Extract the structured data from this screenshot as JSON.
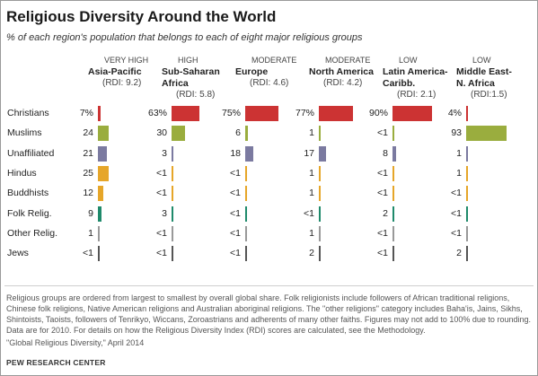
{
  "title": "Religious Diversity Around the World",
  "subtitle": "% of each region's population that belongs to each of eight major religious groups",
  "chart_data": {
    "type": "bar",
    "title": "Religious Diversity Around the World",
    "subtitle": "% of each region's population that belongs to each of eight major religious groups",
    "categories": [
      "Christians",
      "Muslims",
      "Unaffiliated",
      "Hindus",
      "Buddhists",
      "Folk Relig.",
      "Other Relig.",
      "Jews"
    ],
    "category_colors": [
      "#cc3333",
      "#9aad3e",
      "#7b7aa0",
      "#e6a629",
      "#e6a629",
      "#1f8a6b",
      "#999999",
      "#555555"
    ],
    "series": [
      {
        "level": "VERY HIGH",
        "name": "Asia-Pacific",
        "name_lines": [
          "Asia-Pacific"
        ],
        "rdi": "(RDI: 9.2)",
        "values": [
          7,
          24,
          21,
          25,
          12,
          9,
          1,
          0.1
        ],
        "labels": [
          "7%",
          "24",
          "21",
          "25",
          "12",
          "9",
          "1",
          "<1"
        ]
      },
      {
        "level": "HIGH",
        "name": "Sub-Saharan Africa",
        "name_lines": [
          "Sub-Saharan",
          "Africa"
        ],
        "rdi": "(RDI: 5.8)",
        "values": [
          63,
          30,
          3,
          0.1,
          0.1,
          3,
          0.1,
          0.1
        ],
        "labels": [
          "63%",
          "30",
          "3",
          "<1",
          "<1",
          "3",
          "<1",
          "<1"
        ]
      },
      {
        "level": "MODERATE",
        "name": "Europe",
        "name_lines": [
          "Europe"
        ],
        "rdi": "(RDI: 4.6)",
        "values": [
          75,
          6,
          18,
          0.1,
          0.1,
          0.1,
          0.1,
          0.1
        ],
        "labels": [
          "75%",
          "6",
          "18",
          "<1",
          "<1",
          "<1",
          "<1",
          "<1"
        ]
      },
      {
        "level": "MODERATE",
        "name": "North America",
        "name_lines": [
          "North America"
        ],
        "rdi": "(RDI: 4.2)",
        "values": [
          77,
          1,
          17,
          1,
          1,
          0.1,
          1,
          2
        ],
        "labels": [
          "77%",
          "1",
          "17",
          "1",
          "1",
          "<1",
          "1",
          "2"
        ]
      },
      {
        "level": "LOW",
        "name": "Latin America-Caribb.",
        "name_lines": [
          "Latin America-",
          "Caribb."
        ],
        "rdi": "(RDI: 2.1)",
        "values": [
          90,
          0.1,
          8,
          0.1,
          0.1,
          2,
          0.1,
          0.1
        ],
        "labels": [
          "90%",
          "<1",
          "8",
          "<1",
          "<1",
          "2",
          "<1",
          "<1"
        ]
      },
      {
        "level": "LOW",
        "name": "Middle East-N. Africa",
        "name_lines": [
          "Middle East-",
          "N. Africa"
        ],
        "rdi": "(RDI:1.5)",
        "values": [
          4,
          93,
          1,
          1,
          0.1,
          0.1,
          0.1,
          2
        ],
        "labels": [
          "4%",
          "93",
          "1",
          "1",
          "<1",
          "<1",
          "<1",
          "2"
        ]
      }
    ],
    "xlim": [
      0,
      100
    ],
    "grid": false,
    "legend": "none"
  },
  "note": "Religious groups are ordered from largest to smallest by overall global share. Folk religionists include followers of African traditional religions, Chinese folk religions, Native American religions and Australian aboriginal religions. The \"other religions\" category includes Baha'is, Jains, Sikhs, Shintoists, Taoists, followers of Tenrikyo, Wiccans, Zoroastrians and adherents of many other faiths. Figures may not add to 100% due to rounding. Data are for 2010.  For details on how the Religious Diversity Index (RDI) scores are calculated, see the Methodology.",
  "source": "\"Global Religious Diversity,\" April 2014",
  "credit": "PEW RESEARCH CENTER"
}
